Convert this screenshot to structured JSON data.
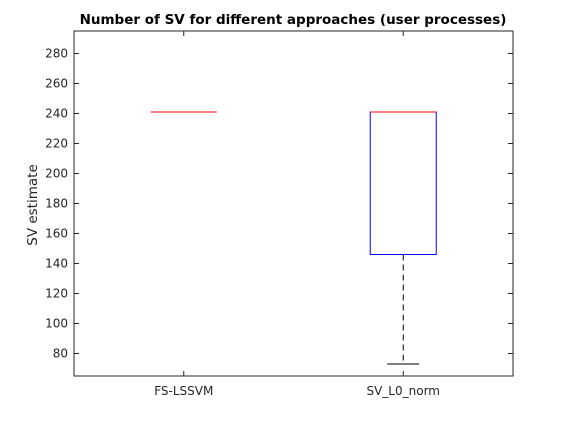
{
  "chart_data": {
    "type": "boxplot",
    "title": "Number of SV for different approaches (user processes)",
    "xlabel": "",
    "ylabel": "SV estimate",
    "ylim": [
      65,
      295
    ],
    "yticks": [
      80,
      100,
      120,
      140,
      160,
      180,
      200,
      220,
      240,
      260,
      280
    ],
    "categories": [
      "FS-LSSVM",
      "SV_L0_norm"
    ],
    "boxes": [
      {
        "category": "FS-LSSVM",
        "whisker_low": 241,
        "q1": 241,
        "median": 241,
        "q3": 241,
        "whisker_high": 241
      },
      {
        "category": "SV_L0_norm",
        "whisker_low": 73,
        "q1": 146,
        "median": 241,
        "q3": 241,
        "whisker_high": 241
      }
    ],
    "grid": false,
    "colors": {
      "box": "#0000ff",
      "median": "#ff0000",
      "whisker": "#000000",
      "axis": "#262626"
    }
  }
}
